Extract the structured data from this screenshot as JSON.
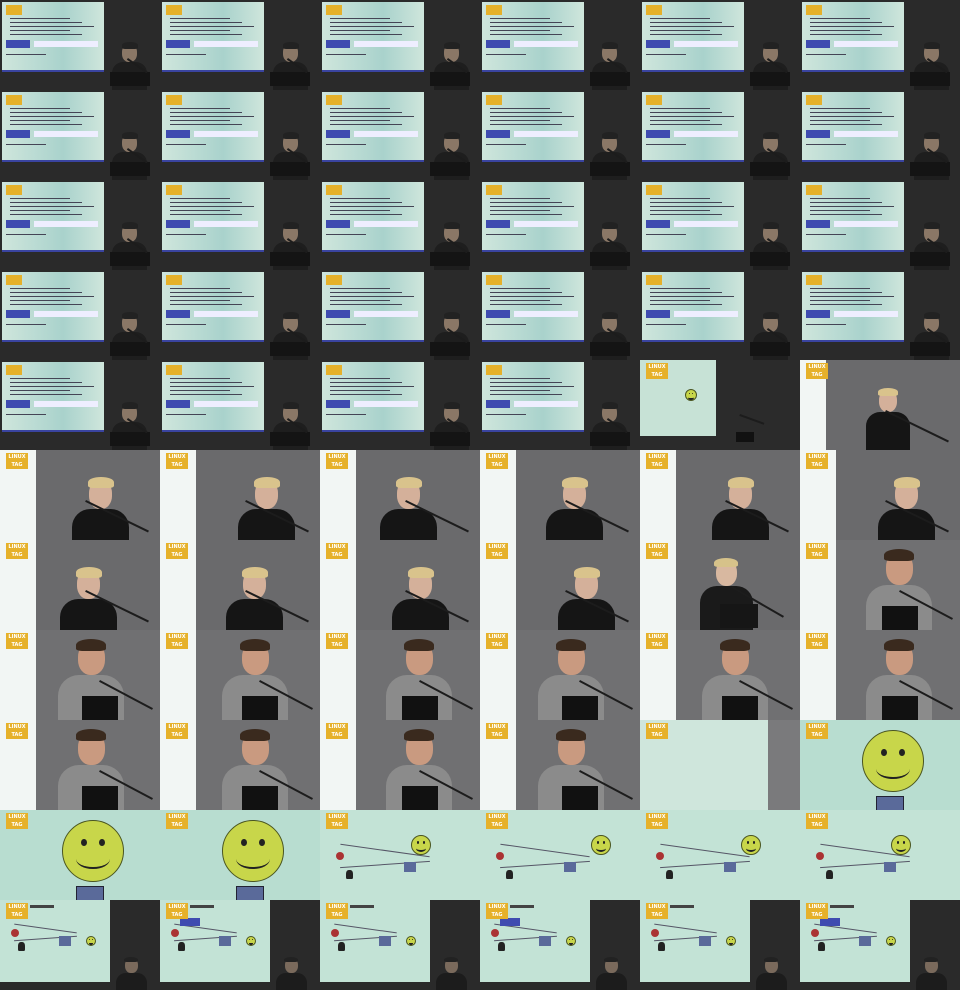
{
  "image": {
    "description_hint": "Contact sheet of 66 video frames from a LinuxTag talk: slide frames, speaker close-ups and diagram slides.",
    "columns": 6,
    "rows": 11,
    "colors": {
      "background": "#101010",
      "slide_green": "#c8e4d4",
      "slide_top": "#cfe6dc",
      "logo_yellow": "#e6b12a",
      "wall_gray": "#6e6e70",
      "screen_white": "#f2f6f4",
      "blue_bar": "#3f4bb0",
      "smiley_yellow": "#c8d64a"
    }
  },
  "logo": {
    "line1": "LINUX",
    "line2": "TAG"
  },
  "frames": [
    "slide",
    "slide",
    "slide",
    "slide",
    "slide",
    "slide",
    "slide",
    "slide",
    "slide",
    "slide",
    "slide",
    "slide",
    "slide",
    "slide",
    "slide",
    "slide",
    "slide",
    "slide",
    "slide",
    "slide",
    "slide",
    "slide",
    "slide",
    "slide",
    "slide",
    "slide",
    "slide",
    "slide",
    "smiley-small",
    "presenter-blonde-screen",
    "presenter-blonde",
    "presenter-blonde",
    "presenter-blonde",
    "presenter-blonde",
    "presenter-blonde",
    "presenter-blonde",
    "presenter-blonde",
    "presenter-blonde",
    "presenter-blonde",
    "presenter-blonde",
    "presenter-laptop",
    "presenter-dark",
    "presenter-dark",
    "presenter-dark",
    "presenter-dark",
    "presenter-dark",
    "presenter-dark",
    "presenter-dark",
    "presenter-dark",
    "presenter-dark",
    "presenter-dark",
    "presenter-dark",
    "screen-blank",
    "smiley-large",
    "smiley-large",
    "smiley-large",
    "diagram",
    "diagram",
    "diagram",
    "diagram",
    "diagram-room",
    "diagram-room",
    "diagram-room",
    "diagram-room",
    "diagram-room",
    "diagram-room"
  ]
}
